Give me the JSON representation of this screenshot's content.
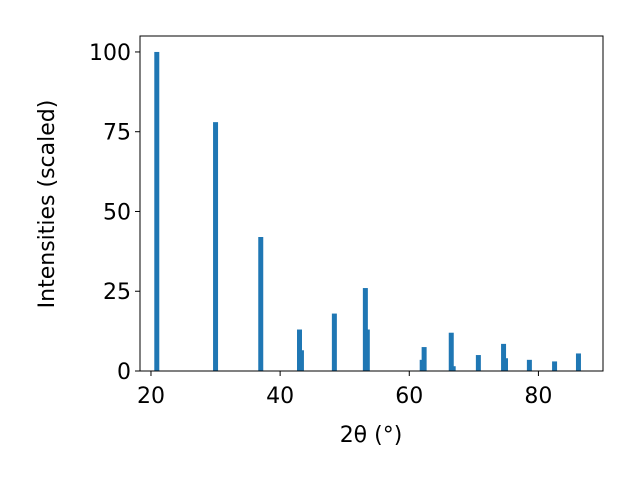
{
  "chart_data": {
    "type": "bar",
    "x_label": "2θ (°)",
    "y_label": "Intensities (scaled)",
    "x": [
      20.9,
      30.0,
      37.0,
      43.0,
      43.3,
      48.4,
      53.2,
      53.5,
      62.0,
      62.3,
      66.5,
      66.8,
      70.7,
      74.6,
      74.9,
      78.6,
      82.5,
      86.2
    ],
    "values": [
      100,
      78,
      42,
      13,
      6.5,
      18,
      26,
      13,
      3.5,
      7.5,
      12,
      1.5,
      5,
      8.5,
      4,
      3.5,
      3,
      5.5
    ],
    "color": "#1f77b4",
    "xlim": [
      18.3,
      90
    ],
    "xticks": [
      20,
      40,
      60,
      80
    ],
    "ylim": [
      0,
      105
    ],
    "yticks": [
      0,
      25,
      50,
      75,
      100
    ],
    "grid": false
  }
}
